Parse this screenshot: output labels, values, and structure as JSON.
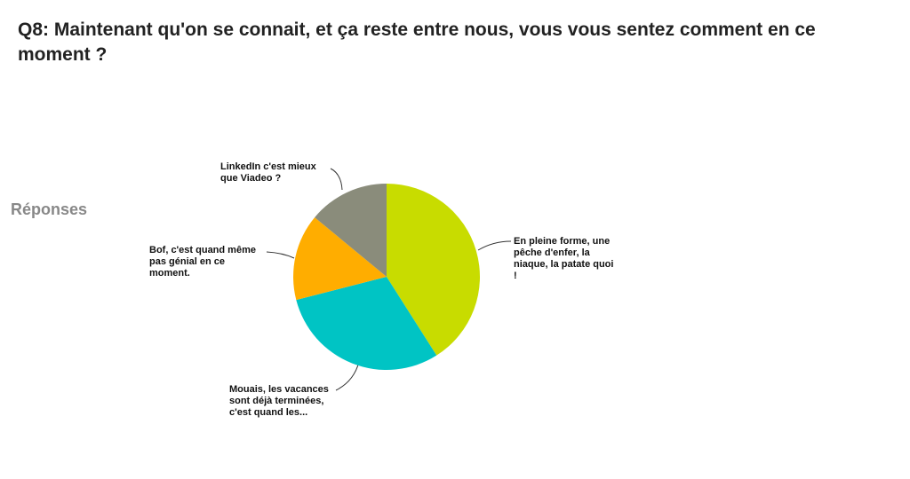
{
  "chart_data": {
    "type": "pie",
    "title": "Q8: Maintenant qu'on se connait, et ça reste entre nous, vous vous sentez comment en ce moment ?",
    "ylabel": "Réponses",
    "categories": [
      "En pleine forme, une pêche d'enfer, la niaque, la patate quoi !",
      "Mouais, les vacances sont déjà terminées, c'est quand les...",
      "Bof, c'est quand même pas génial en ce moment.",
      "LinkedIn c'est mieux que Viadeo ?"
    ],
    "values": [
      41,
      30,
      15,
      14
    ],
    "colors": [
      "#c8dc00",
      "#00c4c4",
      "#ffad00",
      "#8a8c7b"
    ]
  }
}
